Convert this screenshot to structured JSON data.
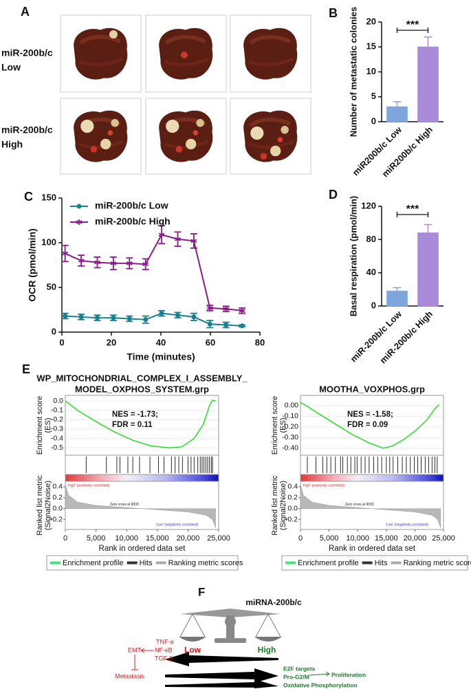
{
  "photo_panel": {
    "panel": "A",
    "rows": [
      [
        "miR-200b/c",
        "Low"
      ],
      [
        "miR-200b/c",
        "High"
      ]
    ]
  },
  "chart_data": [
    {
      "type": "bar",
      "panel": "B",
      "categories": [
        "miR200b/c Low",
        "miR200b/c High"
      ],
      "values": [
        3,
        15
      ],
      "errors": [
        1,
        2
      ],
      "colors": [
        "#7ea6dc",
        "#a98bd9"
      ],
      "ylabel": "Number of metastatic colonies",
      "ylim": [
        0,
        20
      ],
      "yticks": [
        0,
        5,
        10,
        15,
        20
      ],
      "significance": "***"
    },
    {
      "type": "line",
      "panel": "C",
      "xlabel": "Time (minutes)",
      "ylabel": "OCR (pmol/min)",
      "x": [
        1.3,
        7.8,
        14.3,
        20.8,
        27.3,
        33.8,
        40.3,
        46.8,
        53.3,
        59.8,
        66.3,
        72.8
      ],
      "series": [
        {
          "name": "miR-200b/c Low",
          "color": "#17818f",
          "marker": "circle",
          "values": [
            18,
            17,
            16,
            16,
            15,
            14,
            21,
            19,
            17,
            9,
            8,
            7
          ],
          "errors": [
            3,
            3,
            3,
            3,
            3,
            4,
            3,
            3,
            4,
            4,
            3,
            1
          ]
        },
        {
          "name": "miR-200b/c High",
          "color": "#8b1a8b",
          "marker": "star",
          "values": [
            88,
            80,
            78,
            77,
            77,
            76,
            109,
            104,
            102,
            27,
            26,
            24
          ],
          "errors": [
            9,
            6,
            6,
            7,
            6,
            6,
            10,
            8,
            8,
            3,
            3,
            3
          ]
        }
      ],
      "xlim": [
        0,
        80
      ],
      "ylim": [
        0,
        150
      ],
      "xticks": [
        0,
        20,
        40,
        60,
        80
      ],
      "yticks": [
        0,
        50,
        100,
        150
      ],
      "legend": "upper left"
    },
    {
      "type": "bar",
      "panel": "D",
      "categories": [
        "miR-200b/c Low",
        "miR-200b/c High"
      ],
      "values": [
        18,
        88
      ],
      "errors": [
        4,
        10
      ],
      "colors": [
        "#7ea6dc",
        "#a98bd9"
      ],
      "ylabel": "Basal respiration (pmol/min)",
      "ylim": [
        0,
        120
      ],
      "yticks": [
        0,
        40,
        80,
        120
      ],
      "significance": "***"
    },
    {
      "type": "gsea",
      "panel": "E",
      "title": [
        "WP_MITOCHONDRIAL_COMPLEX_I_ASSEMBLY_",
        "MODEL_OXPHOS_SYSTEM.grp"
      ],
      "stats": [
        "NES = -1.73;",
        "FDR = 0.11"
      ],
      "x": [
        0,
        2000,
        5000,
        8000,
        11000,
        14000,
        17000,
        19000,
        21000,
        22500,
        23500,
        24000,
        24500
      ],
      "es": [
        0,
        -0.1,
        -0.22,
        -0.33,
        -0.42,
        -0.48,
        -0.5,
        -0.49,
        -0.4,
        -0.25,
        -0.05,
        0.01,
        0
      ],
      "hits": [
        3400,
        6700,
        8400,
        8900,
        10200,
        11000,
        12100,
        13800,
        15200,
        16100,
        17300,
        17900,
        18500,
        19100,
        20000,
        20500,
        21000,
        21600,
        22000,
        22300,
        22600,
        22900,
        23200,
        23500,
        23800,
        24000
      ],
      "metric_x": [
        0,
        500,
        2000,
        5000,
        10000,
        15000,
        20000,
        23000,
        24000,
        24500
      ],
      "metric": [
        0.45,
        0.25,
        0.12,
        0.06,
        0.02,
        -0.02,
        -0.06,
        -0.12,
        -0.2,
        -0.35
      ],
      "xlim": [
        0,
        25000
      ],
      "xticks": [
        0,
        {
          "value": 5000,
          "label": "5,000"
        },
        {
          "value": 10000,
          "label": "10,000"
        },
        {
          "value": 15000,
          "label": "15,000"
        },
        {
          "value": 20000,
          "label": "20,000"
        },
        {
          "value": 25000,
          "label": "25,000"
        }
      ],
      "es_ylim": [
        -0.55,
        0.03
      ],
      "es_yticks": [
        {
          "value": 0,
          "label": "0.0"
        },
        -0.1,
        -0.2,
        -0.3,
        -0.4,
        -0.5
      ],
      "metric_ylim": [
        -0.38,
        0.5
      ],
      "metric_yticks": [
        0.4,
        0.2,
        {
          "value": 0,
          "label": "0.0"
        },
        -0.2
      ],
      "es_ylabel": [
        "Enrichment score",
        "(ES)"
      ],
      "metric_ylabel": [
        "Ranked list metric",
        "(Signal2Noise)"
      ],
      "xlabel": "Rank in ordered data set",
      "high_label": "'High' (positively correlated)",
      "zero_label": "Zero cross at 9033",
      "low_label": "'Low' (negatively correlated)",
      "legend_items": [
        {
          "name": "Enrichment profile",
          "color": "#3ee67a"
        },
        {
          "name": "Hits",
          "color": "#333333"
        },
        {
          "name": "Ranking metric scores",
          "color": "#aaaaaa"
        }
      ],
      "es_color": "#22e022"
    },
    {
      "type": "gsea",
      "title": [
        "MOOTHA_VOXPHOS.grp"
      ],
      "stats": [
        "NES = -1.58;",
        "FDR = 0.09"
      ],
      "x": [
        0,
        1000,
        3000,
        6000,
        9000,
        12000,
        14500,
        16000,
        18000,
        20000,
        22000,
        23500,
        24200
      ],
      "es": [
        0.03,
        0,
        -0.07,
        -0.17,
        -0.27,
        -0.35,
        -0.4,
        -0.38,
        -0.32,
        -0.24,
        -0.14,
        -0.03,
        0.01
      ],
      "hits": [
        1200,
        2700,
        3900,
        4600,
        5300,
        6100,
        7000,
        7400,
        8200,
        8800,
        9500,
        9900,
        10600,
        11300,
        12000,
        12800,
        13500,
        14200,
        15000,
        15600,
        16200,
        17000,
        17800,
        18500,
        19200,
        19900,
        20500,
        21100,
        21800,
        22400,
        23000,
        23500,
        23900
      ],
      "metric_x": [
        0,
        500,
        2000,
        5000,
        10000,
        15000,
        20000,
        23000,
        24000,
        24500
      ],
      "metric": [
        0.45,
        0.25,
        0.12,
        0.06,
        0.02,
        -0.02,
        -0.06,
        -0.12,
        -0.2,
        -0.35
      ],
      "xlim": [
        0,
        25000
      ],
      "xticks": [
        0,
        {
          "value": 5000,
          "label": "5,000"
        },
        {
          "value": 10000,
          "label": "10,000"
        },
        {
          "value": 15000,
          "label": "15,000"
        },
        {
          "value": 20000,
          "label": "20,000"
        },
        {
          "value": 25000,
          "label": "25,000"
        }
      ],
      "es_ylim": [
        -0.44,
        0.07
      ],
      "es_yticks": [
        {
          "value": 0,
          "label": "0.00"
        },
        {
          "value": -0.1,
          "label": "-0.10"
        },
        {
          "value": -0.2,
          "label": "-0.20"
        },
        {
          "value": -0.3,
          "label": "-0.30"
        },
        {
          "value": -0.4,
          "label": "-0.40"
        }
      ],
      "metric_ylim": [
        -0.38,
        0.5
      ],
      "metric_yticks": [
        0.4,
        0.2,
        {
          "value": 0,
          "label": "0.0"
        },
        -0.2
      ],
      "es_ylabel": [
        "Enrichment score",
        "(ES)"
      ],
      "metric_ylabel": [
        "Ranked list metric",
        "(Signal2Noise)"
      ],
      "xlabel": "Rank in ordered data set",
      "high_label": "'High' (positively correlated)",
      "zero_label": "Zero cross at 9033",
      "low_label": "'Low' (negatively correlated)",
      "legend_items": [
        {
          "name": "Enrichment profile",
          "color": "#3ee67a"
        },
        {
          "name": "Hits",
          "color": "#333333"
        },
        {
          "name": "Ranking metric scores",
          "color": "#aaaaaa"
        }
      ],
      "es_color": "#22e022"
    }
  ],
  "diagram": {
    "panel": "F",
    "title": "miRNA-200b/c",
    "low": "Low",
    "high": "High",
    "left_factors": [
      "TNF-α",
      "NF-κB",
      "TGF-β"
    ],
    "emt": "EMT",
    "metastasis": "Metastasis",
    "right_targets": [
      "E2F targets",
      "Pro-G2/M"
    ],
    "proliferation": "Proliferation",
    "oxphos": "Oxidative Phosphorylation"
  }
}
